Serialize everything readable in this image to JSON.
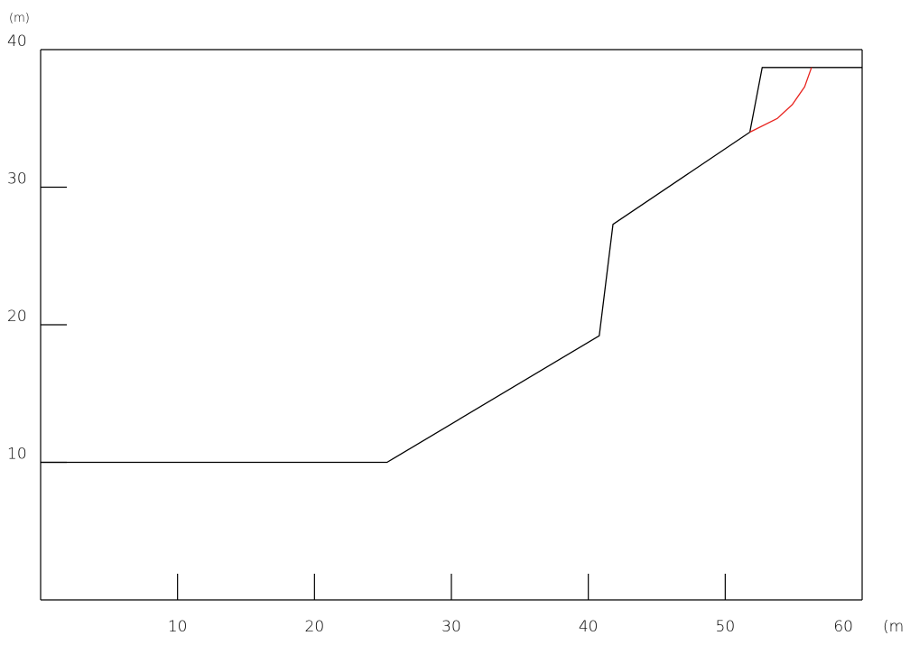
{
  "chart_data": {
    "type": "line",
    "title": "",
    "xlabel": "",
    "ylabel": "",
    "x_unit": "(m",
    "y_unit": "(m)",
    "xlim": [
      0,
      60
    ],
    "ylim": [
      0,
      40
    ],
    "x_ticks": [
      10,
      20,
      30,
      40,
      50,
      60
    ],
    "y_ticks": [
      10,
      20,
      30,
      40
    ],
    "grid": false,
    "series": [
      {
        "color": "#000000",
        "x": [
          0,
          25.3,
          40.8,
          41.8,
          51.8,
          52.7,
          60
        ],
        "y": [
          10,
          10,
          19.2,
          27.3,
          34.0,
          38.7,
          38.7
        ]
      },
      {
        "color": "#e8231e",
        "x": [
          51.8,
          53.8,
          54.9,
          55.8,
          56.3
        ],
        "y": [
          34.0,
          35.0,
          36.0,
          37.3,
          38.7
        ]
      }
    ]
  }
}
